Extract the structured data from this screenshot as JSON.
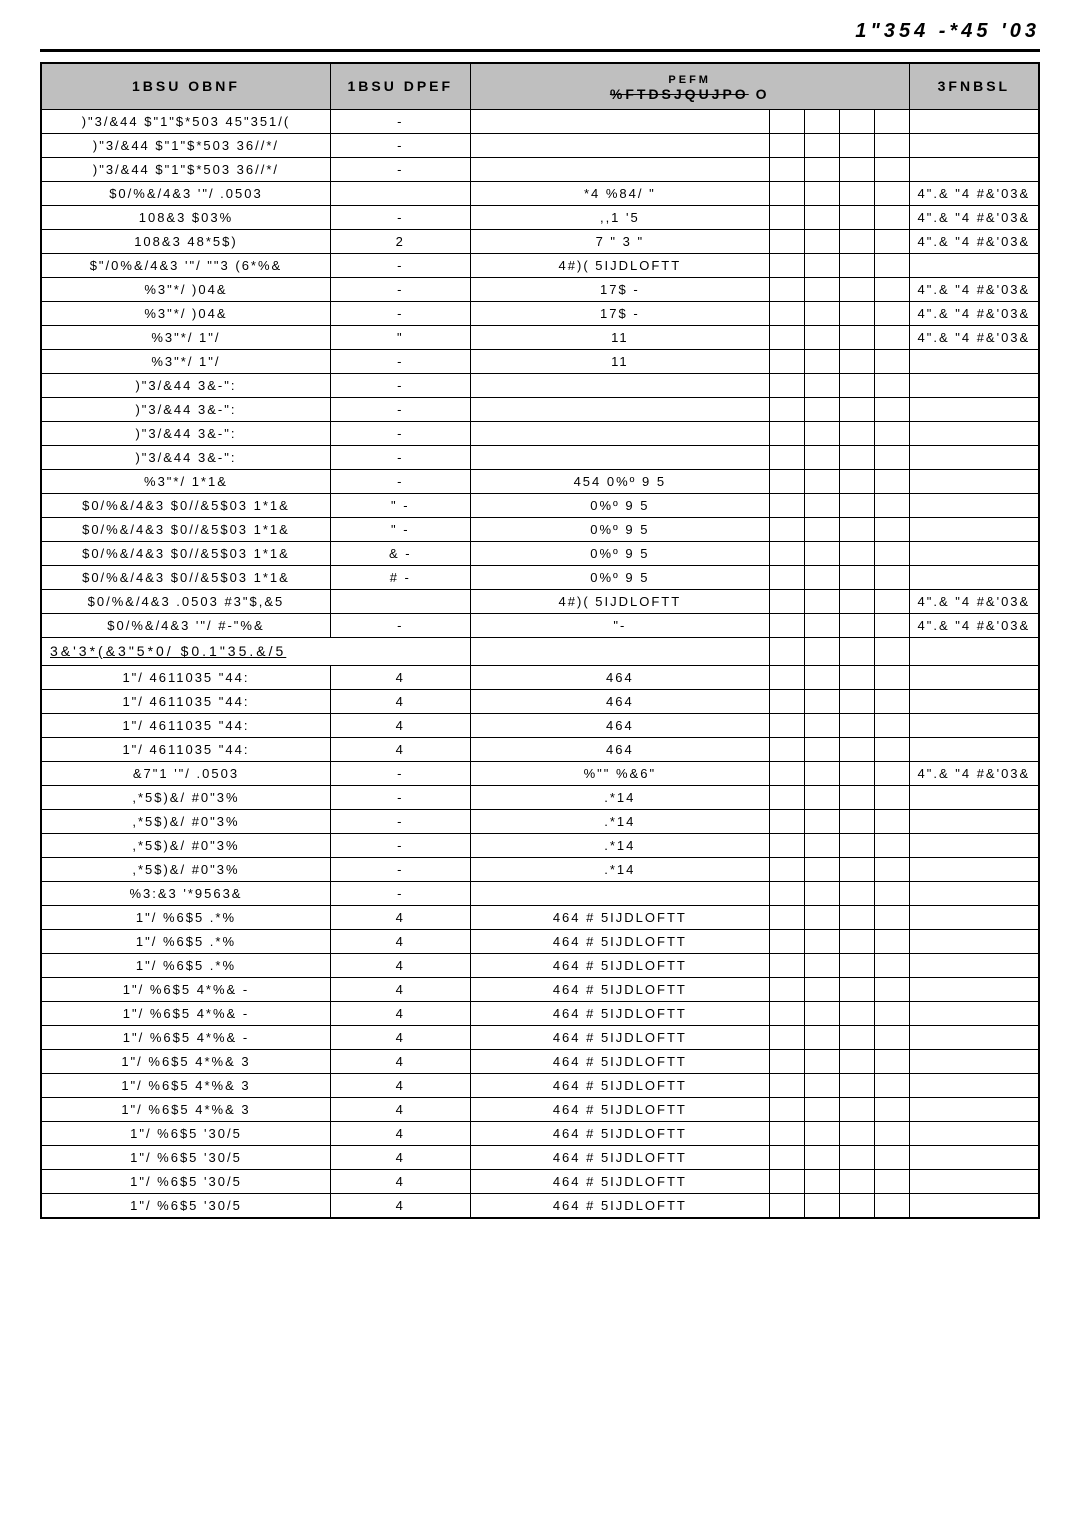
{
  "page_title": "1\"354 -*45 '03",
  "headers": {
    "col1": "1BSU OBNF",
    "col2": "1BSU DPEF",
    "col3_top": "PEFM",
    "col3_bottom_strike": "%FTDSJQUJPO",
    "col3_suffix": "O",
    "col8": "3FNBSL"
  },
  "section_header": "3&'3*(&3\"5*0/ $0.1\"35.&/5",
  "rows": [
    {
      "name": ")\"3/&44 $\"1\"$*503 45\"351/(",
      "code": "-",
      "desc": "",
      "d": [
        "",
        "",
        "",
        ""
      ],
      "remark": ""
    },
    {
      "name": ")\"3/&44 $\"1\"$*503 36//*/",
      "code": "-",
      "desc": "",
      "d": [
        "",
        "",
        "",
        ""
      ],
      "remark": ""
    },
    {
      "name": ")\"3/&44 $\"1\"$*503 36//*/",
      "code": "-",
      "desc": "",
      "d": [
        "",
        "",
        "",
        ""
      ],
      "remark": ""
    },
    {
      "name": "$0/%&/4&3 '\"/ .0503",
      "code": "",
      "desc": "*4   %84/  \"",
      "d": [
        "",
        "",
        "",
        ""
      ],
      "remark": "4\".& \"4 #&'03&"
    },
    {
      "name": "108&3 $03%",
      "code": "-",
      "desc": ",,1     '5",
      "d": [
        "",
        "",
        "",
        ""
      ],
      "remark": "4\".& \"4 #&'03&"
    },
    {
      "name": "108&3 48*5$)",
      "code": "2",
      "desc": "7  \"  3  \"",
      "d": [
        "",
        "",
        "",
        ""
      ],
      "remark": "4\".& \"4 #&'03&"
    },
    {
      "name": "$\"/0%&/4&3 '\"/ \"\"3 (6*%&",
      "code": "-",
      "desc": "4#)(     5IJDLOFTT",
      "d": [
        "",
        "",
        "",
        ""
      ],
      "remark": ""
    },
    {
      "name": "%3\"*/ )04&",
      "code": "-",
      "desc": "17$   -",
      "d": [
        "",
        "",
        "",
        ""
      ],
      "remark": "4\".& \"4 #&'03&"
    },
    {
      "name": "%3\"*/ )04&",
      "code": "-",
      "desc": "17$   -",
      "d": [
        "",
        "",
        "",
        ""
      ],
      "remark": "4\".& \"4 #&'03&"
    },
    {
      "name": "%3\"*/ 1\"/",
      "code": "\"",
      "desc": "11",
      "d": [
        "",
        "",
        "",
        ""
      ],
      "remark": "4\".& \"4 #&'03&"
    },
    {
      "name": "%3\"*/ 1\"/",
      "code": "-",
      "desc": "11",
      "d": [
        "",
        "",
        "",
        ""
      ],
      "remark": ""
    },
    {
      "name": ")\"3/&44 3&-\":",
      "code": "-",
      "desc": "",
      "d": [
        "",
        "",
        "",
        ""
      ],
      "remark": ""
    },
    {
      "name": ")\"3/&44 3&-\":",
      "code": "-",
      "desc": "",
      "d": [
        "",
        "",
        "",
        ""
      ],
      "remark": ""
    },
    {
      "name": ")\"3/&44 3&-\":",
      "code": "-",
      "desc": "",
      "d": [
        "",
        "",
        "",
        ""
      ],
      "remark": ""
    },
    {
      "name": ")\"3/&44 3&-\":",
      "code": "-",
      "desc": "",
      "d": [
        "",
        "",
        "",
        ""
      ],
      "remark": ""
    },
    {
      "name": "%3\"*/ 1*1&",
      "code": "-",
      "desc": "454  0%º   9   5",
      "d": [
        "",
        "",
        "",
        ""
      ],
      "remark": ""
    },
    {
      "name": "$0/%&/4&3 $0//&5$03 1*1&",
      "code": "\"   -",
      "desc": "0%º   9   5",
      "d": [
        "",
        "",
        "",
        ""
      ],
      "remark": ""
    },
    {
      "name": "$0/%&/4&3 $0//&5$03 1*1&",
      "code": "\"   -",
      "desc": "0%º   9   5",
      "d": [
        "",
        "",
        "",
        ""
      ],
      "remark": ""
    },
    {
      "name": "$0/%&/4&3 $0//&5$03 1*1&",
      "code": "&   -",
      "desc": "0%º   9   5",
      "d": [
        "",
        "",
        "",
        ""
      ],
      "remark": ""
    },
    {
      "name": "$0/%&/4&3 $0//&5$03 1*1&",
      "code": "#   -",
      "desc": "0%º   9   5",
      "d": [
        "",
        "",
        "",
        ""
      ],
      "remark": ""
    },
    {
      "name": "$0/%&/4&3 .0503 #3\"$,&5",
      "code": "",
      "desc": "4#)(     5IJDLOFTT",
      "d": [
        "",
        "",
        "",
        ""
      ],
      "remark": "4\".& \"4 #&'03&"
    },
    {
      "name": "$0/%&/4&3 '\"/ #-\"%&",
      "code": "-",
      "desc": "\"-",
      "d": [
        "",
        "",
        "",
        ""
      ],
      "remark": "4\".& \"4 #&'03&"
    }
  ],
  "rows2": [
    {
      "name": "1\"/ 4611035 \"44:",
      "code": "4",
      "desc": "464",
      "d": [
        "",
        "",
        "",
        ""
      ],
      "remark": ""
    },
    {
      "name": "1\"/ 4611035 \"44:",
      "code": "4",
      "desc": "464",
      "d": [
        "",
        "",
        "",
        ""
      ],
      "remark": ""
    },
    {
      "name": "1\"/ 4611035 \"44:",
      "code": "4",
      "desc": "464",
      "d": [
        "",
        "",
        "",
        ""
      ],
      "remark": ""
    },
    {
      "name": "1\"/ 4611035 \"44:",
      "code": "4",
      "desc": "464",
      "d": [
        "",
        "",
        "",
        ""
      ],
      "remark": ""
    },
    {
      "name": "&7\"1 '\"/ .0503",
      "code": "-",
      "desc": "%\"\"    %&6\"",
      "d": [
        "",
        "",
        "",
        ""
      ],
      "remark": "4\".& \"4 #&'03&"
    },
    {
      "name": ",*5$)&/ #0\"3%",
      "code": "-",
      "desc": ".*14",
      "d": [
        "",
        "",
        "",
        ""
      ],
      "remark": ""
    },
    {
      "name": ",*5$)&/ #0\"3%",
      "code": "-",
      "desc": ".*14",
      "d": [
        "",
        "",
        "",
        ""
      ],
      "remark": ""
    },
    {
      "name": ",*5$)&/ #0\"3%",
      "code": "-",
      "desc": ".*14",
      "d": [
        "",
        "",
        "",
        ""
      ],
      "remark": ""
    },
    {
      "name": ",*5$)&/ #0\"3%",
      "code": "-",
      "desc": ".*14",
      "d": [
        "",
        "",
        "",
        ""
      ],
      "remark": ""
    },
    {
      "name": "%3:&3 '*9563&",
      "code": "-",
      "desc": "",
      "d": [
        "",
        "",
        "",
        ""
      ],
      "remark": ""
    },
    {
      "name": "1\"/ %6$5 .*%",
      "code": "4",
      "desc": "464   #     5IJDLOFTT",
      "d": [
        "",
        "",
        "",
        ""
      ],
      "remark": ""
    },
    {
      "name": "1\"/ %6$5 .*%",
      "code": "4",
      "desc": "464   #     5IJDLOFTT",
      "d": [
        "",
        "",
        "",
        ""
      ],
      "remark": ""
    },
    {
      "name": "1\"/ %6$5 .*%",
      "code": "4",
      "desc": "464   #     5IJDLOFTT",
      "d": [
        "",
        "",
        "",
        ""
      ],
      "remark": ""
    },
    {
      "name": "1\"/ %6$5 4*%& -",
      "code": "4",
      "desc": "464   #     5IJDLOFTT",
      "d": [
        "",
        "",
        "",
        ""
      ],
      "remark": ""
    },
    {
      "name": "1\"/ %6$5 4*%& -",
      "code": "4",
      "desc": "464   #     5IJDLOFTT",
      "d": [
        "",
        "",
        "",
        ""
      ],
      "remark": ""
    },
    {
      "name": "1\"/ %6$5 4*%& -",
      "code": "4",
      "desc": "464   #     5IJDLOFTT",
      "d": [
        "",
        "",
        "",
        ""
      ],
      "remark": ""
    },
    {
      "name": "1\"/ %6$5 4*%& 3",
      "code": "4",
      "desc": "464   #     5IJDLOFTT",
      "d": [
        "",
        "",
        "",
        ""
      ],
      "remark": ""
    },
    {
      "name": "1\"/ %6$5 4*%& 3",
      "code": "4",
      "desc": "464   #     5IJDLOFTT",
      "d": [
        "",
        "",
        "",
        ""
      ],
      "remark": ""
    },
    {
      "name": "1\"/ %6$5 4*%& 3",
      "code": "4",
      "desc": "464   #     5IJDLOFTT",
      "d": [
        "",
        "",
        "",
        ""
      ],
      "remark": ""
    },
    {
      "name": "1\"/ %6$5 '30/5",
      "code": "4",
      "desc": "464   #    5IJDLOFTT",
      "d": [
        "",
        "",
        "",
        ""
      ],
      "remark": ""
    },
    {
      "name": "1\"/ %6$5 '30/5",
      "code": "4",
      "desc": "464   #    5IJDLOFTT",
      "d": [
        "",
        "",
        "",
        ""
      ],
      "remark": ""
    },
    {
      "name": "1\"/ %6$5 '30/5",
      "code": "4",
      "desc": "464   #    5IJDLOFTT",
      "d": [
        "",
        "",
        "",
        ""
      ],
      "remark": ""
    },
    {
      "name": "1\"/ %6$5 '30/5",
      "code": "4",
      "desc": "464   #    5IJDLOFTT",
      "d": [
        "",
        "",
        "",
        ""
      ],
      "remark": ""
    }
  ],
  "styles": {
    "header_bg": "#bfbfbf",
    "border_color": "#000000",
    "page_bg": "#ffffff",
    "font_family": "Arial",
    "title_fontsize": 20,
    "th_fontsize": 14,
    "td_fontsize": 13
  }
}
